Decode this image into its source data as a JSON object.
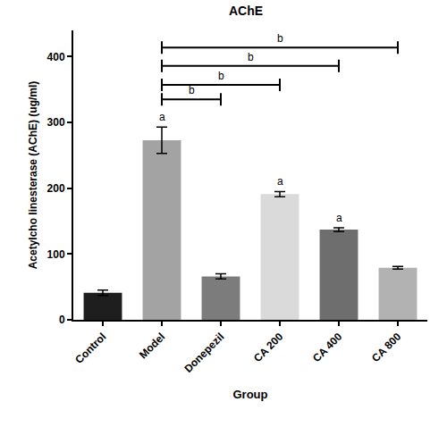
{
  "chart_data": {
    "type": "bar",
    "title": "AChE",
    "x_label": "Group",
    "y_label": "Acetylcho linesterase (AChE) (ug/ml)",
    "categories": [
      "Control",
      "Model",
      "Donepezil",
      "CA 200",
      "CA 400",
      "CA 800"
    ],
    "values": [
      41,
      273,
      66,
      191,
      137,
      79
    ],
    "errors": [
      4,
      20,
      4,
      4,
      3,
      2
    ],
    "colors": [
      "#1e1e1e",
      "#a3a3a3",
      "#7c7c7c",
      "#dadada",
      "#6e6e6e",
      "#b2b2b2"
    ],
    "ylim": [
      0,
      440
    ],
    "yticks": [
      0,
      100,
      200,
      300,
      400
    ],
    "grid": false,
    "annotations": [
      {
        "category": "Model",
        "text": "a"
      },
      {
        "category": "CA 200",
        "text": "a"
      },
      {
        "category": "CA 400",
        "text": "a"
      }
    ],
    "brackets": [
      {
        "from": "Model",
        "to": "Donepezil",
        "y": 335,
        "text": "b"
      },
      {
        "from": "Model",
        "to": "CA 200",
        "y": 357,
        "text": "b"
      },
      {
        "from": "Model",
        "to": "CA 400",
        "y": 386,
        "text": "b"
      },
      {
        "from": "Model",
        "to": "CA 800",
        "y": 414,
        "text": "b"
      }
    ]
  }
}
